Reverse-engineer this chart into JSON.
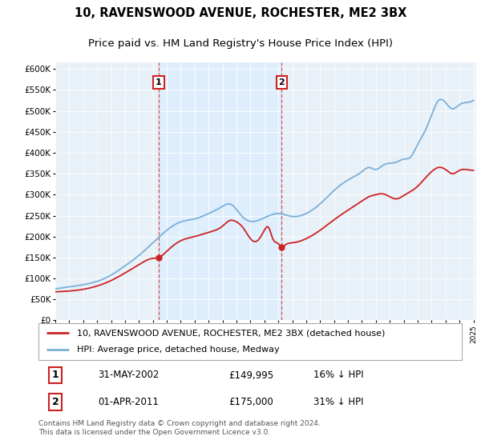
{
  "title": "10, RAVENSWOOD AVENUE, ROCHESTER, ME2 3BX",
  "subtitle": "Price paid vs. HM Land Registry's House Price Index (HPI)",
  "hpi_label": "HPI: Average price, detached house, Medway",
  "price_label": "10, RAVENSWOOD AVENUE, ROCHESTER, ME2 3BX (detached house)",
  "ylabel_ticks": [
    "£0",
    "£50K",
    "£100K",
    "£150K",
    "£200K",
    "£250K",
    "£300K",
    "£350K",
    "£400K",
    "£450K",
    "£500K",
    "£550K",
    "£600K"
  ],
  "ytick_values": [
    0,
    50000,
    100000,
    150000,
    200000,
    250000,
    300000,
    350000,
    400000,
    450000,
    500000,
    550000,
    600000
  ],
  "ylim": [
    0,
    615000
  ],
  "xlim_start": 1995.0,
  "xlim_end": 2025.2,
  "hpi_color": "#7ab0d8",
  "price_color": "#cc2222",
  "shaded_color": "#ddeeff",
  "background_color": "#e8f0f8",
  "transaction1_year": 2002.42,
  "transaction1_price": 149995,
  "transaction2_year": 2011.25,
  "transaction2_price": 175000,
  "footer": "Contains HM Land Registry data © Crown copyright and database right 2024.\nThis data is licensed under the Open Government Licence v3.0.",
  "title_fontsize": 10.5,
  "subtitle_fontsize": 9.5,
  "tick_fontsize": 7.5,
  "legend_fontsize": 8,
  "table_fontsize": 8.5,
  "footer_fontsize": 6.5
}
